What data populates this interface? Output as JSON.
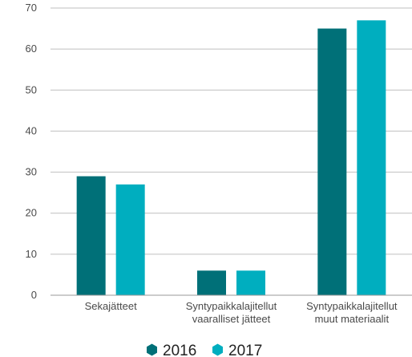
{
  "chart_data": {
    "type": "bar",
    "categories": [
      [
        "Sekajätteet"
      ],
      [
        "Syntypaikkalajitellut",
        "vaaralliset jätteet"
      ],
      [
        "Syntypaikkalajitellut",
        "muut materiaalit"
      ]
    ],
    "series": [
      {
        "name": "2016",
        "values": [
          29,
          6,
          65
        ],
        "color": "#007078"
      },
      {
        "name": "2017",
        "values": [
          27,
          6,
          67
        ],
        "color": "#00AEBF"
      }
    ],
    "yticks": [
      "0",
      "10",
      "20",
      "30",
      "40",
      "50",
      "60",
      "70"
    ],
    "ylim": [
      0,
      70
    ],
    "grid": true,
    "legend": "bottom-center",
    "title": "",
    "xlabel": "",
    "ylabel": ""
  }
}
